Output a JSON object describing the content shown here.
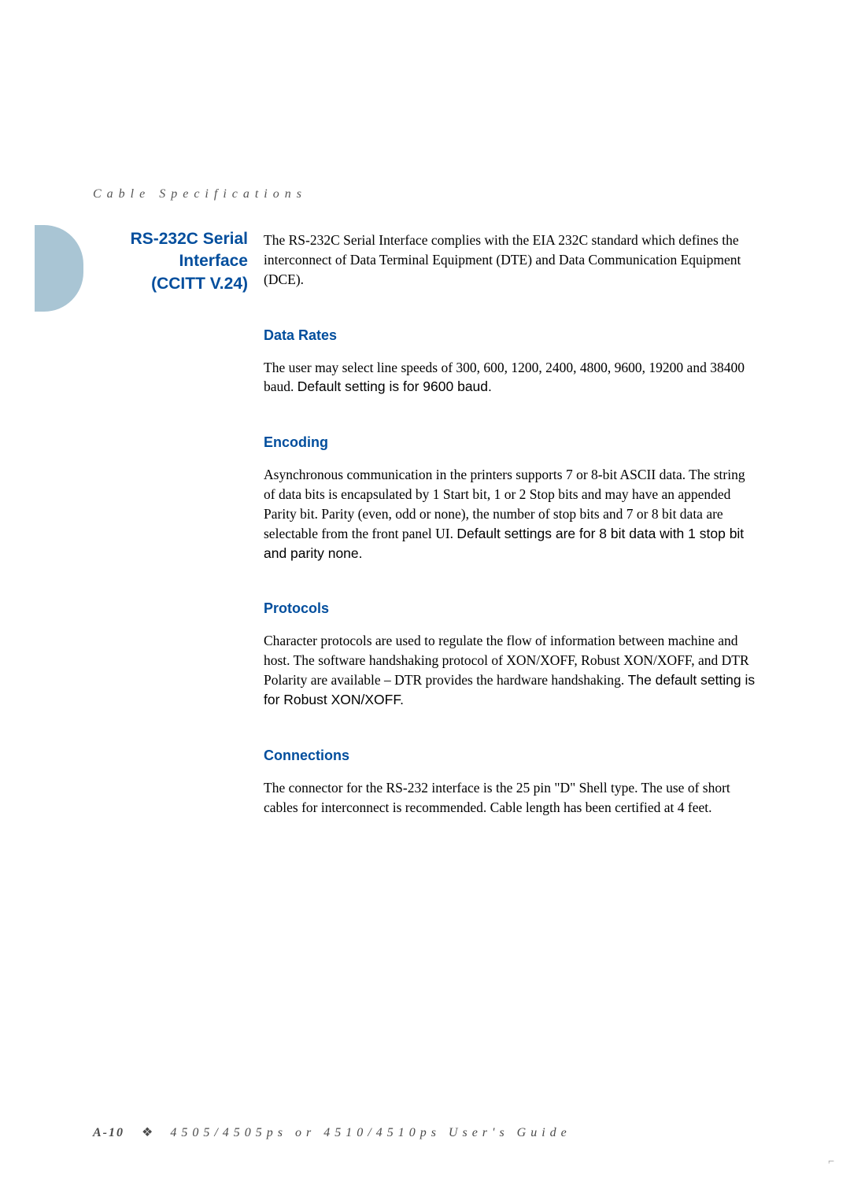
{
  "header": {
    "running_title": "Cable Specifications"
  },
  "section": {
    "title_line1": "RS-232C Serial",
    "title_line2": "Interface",
    "title_line3": "(CCITT V.24)",
    "intro": "The RS-232C Serial Interface complies with the EIA 232C standard which defines the interconnect of Data Terminal Equipment (DTE) and Data Communication Equipment (DCE)."
  },
  "subsections": {
    "data_rates": {
      "title": "Data Rates",
      "text_a": "The user may select line speeds of 300, 600, 1200, 2400, 4800, 9600, 19200 and 38400 baud. ",
      "text_b": "Default setting is for 9600 baud."
    },
    "encoding": {
      "title": "Encoding",
      "text_a": "Asynchronous communication in the printers supports 7 or 8-bit ASCII data. The string of data bits is encapsulated by 1 Start bit, 1 or 2 Stop bits and may have an appended Parity bit. Parity (even, odd or none), the number of stop bits and 7 or 8 bit data are selectable from the front panel UI. ",
      "text_b": "Default settings are for 8 bit data with 1 stop bit and parity none."
    },
    "protocols": {
      "title": "Protocols",
      "text_a": "Character protocols are used to regulate the flow of information between machine and host. The software handshaking protocol of XON/XOFF, Robust XON/XOFF, and DTR Polarity are available – DTR provides the hardware handshaking. ",
      "text_b": "The default setting is for Robust XON/XOFF."
    },
    "connections": {
      "title": "Connections",
      "text": "The connector for the RS-232 interface is the 25 pin \"D\" Shell type. The use of short cables for interconnect is recommended. Cable length has been certified at 4 feet."
    }
  },
  "footer": {
    "page_number": "A-10",
    "guide_title": "4505/4505ps or 4510/4510ps User's Guide"
  },
  "styling": {
    "accent_color": "#024e9d",
    "tab_color": "#a9c5d4",
    "body_color": "#000000",
    "header_color": "#555555",
    "background": "#ffffff"
  }
}
